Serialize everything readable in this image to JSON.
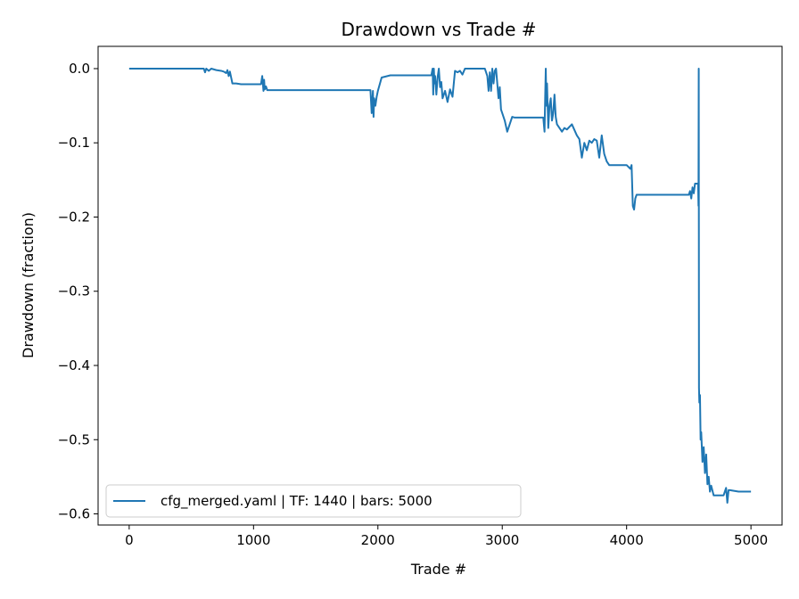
{
  "chart_data": {
    "type": "line",
    "title": "Drawdown vs Trade #",
    "xlabel": "Trade #",
    "ylabel": "Drawdown (fraction)",
    "xlim": [
      -250,
      5250
    ],
    "ylim": [
      -0.615,
      0.03
    ],
    "xticks": [
      0,
      1000,
      2000,
      3000,
      4000,
      5000
    ],
    "xtick_labels": [
      "0",
      "1000",
      "2000",
      "3000",
      "4000",
      "5000"
    ],
    "yticks": [
      0.0,
      -0.1,
      -0.2,
      -0.3,
      -0.4,
      -0.5,
      -0.6
    ],
    "ytick_labels": [
      "0.0",
      "−0.1",
      "−0.2",
      "−0.3",
      "−0.4",
      "−0.5",
      "−0.6"
    ],
    "grid": false,
    "legend_position": "lower-left",
    "series": [
      {
        "name": "cfg_merged.yaml | TF: 1440 | bars: 5000",
        "color": "#1f77b4",
        "x": [
          0,
          600,
          610,
          620,
          640,
          660,
          700,
          740,
          760,
          780,
          790,
          800,
          810,
          820,
          830,
          860,
          900,
          1060,
          1070,
          1080,
          1085,
          1090,
          1100,
          1110,
          1200,
          1500,
          1800,
          1940,
          1950,
          1960,
          1965,
          1970,
          1980,
          1990,
          2000,
          2030,
          2100,
          2200,
          2300,
          2400,
          2430,
          2440,
          2445,
          2450,
          2455,
          2460,
          2470,
          2480,
          2490,
          2500,
          2510,
          2520,
          2540,
          2560,
          2580,
          2600,
          2620,
          2640,
          2660,
          2680,
          2700,
          2720,
          2760,
          2800,
          2860,
          2880,
          2890,
          2900,
          2910,
          2920,
          2930,
          2940,
          2950,
          2960,
          2970,
          2980,
          2990,
          3000,
          3020,
          3040,
          3060,
          3080,
          3100,
          3200,
          3300,
          3330,
          3340,
          3345,
          3350,
          3355,
          3360,
          3370,
          3380,
          3390,
          3400,
          3410,
          3420,
          3430,
          3440,
          3460,
          3480,
          3500,
          3520,
          3560,
          3600,
          3620,
          3640,
          3660,
          3680,
          3700,
          3720,
          3740,
          3760,
          3780,
          3800,
          3820,
          3840,
          3860,
          3900,
          3950,
          4000,
          4030,
          4040,
          4050,
          4060,
          4070,
          4080,
          4100,
          4150,
          4200,
          4300,
          4400,
          4500,
          4510,
          4520,
          4530,
          4540,
          4550,
          4560,
          4570,
          4575,
          4578,
          4580,
          4582,
          4585,
          4590,
          4595,
          4600,
          4610,
          4620,
          4630,
          4640,
          4650,
          4660,
          4670,
          4680,
          4700,
          4750,
          4780,
          4800,
          4810,
          4820,
          4830,
          4900,
          5000
        ],
        "y": [
          0.0,
          0.0,
          -0.005,
          0.0,
          -0.003,
          0.0,
          -0.002,
          -0.003,
          -0.004,
          -0.006,
          -0.002,
          -0.01,
          -0.004,
          -0.012,
          -0.02,
          -0.02,
          -0.021,
          -0.021,
          -0.01,
          -0.03,
          -0.015,
          -0.028,
          -0.024,
          -0.029,
          -0.029,
          -0.029,
          -0.029,
          -0.029,
          -0.06,
          -0.03,
          -0.065,
          -0.04,
          -0.05,
          -0.038,
          -0.03,
          -0.012,
          -0.009,
          -0.009,
          -0.009,
          -0.009,
          -0.009,
          0.0,
          -0.035,
          0.0,
          -0.02,
          -0.01,
          -0.035,
          -0.012,
          0.0,
          -0.025,
          -0.018,
          -0.04,
          -0.03,
          -0.045,
          -0.028,
          -0.038,
          -0.003,
          -0.005,
          -0.003,
          -0.008,
          0.0,
          0.0,
          0.0,
          0.0,
          0.0,
          -0.01,
          -0.03,
          -0.005,
          -0.03,
          0.0,
          -0.02,
          -0.003,
          0.0,
          -0.02,
          -0.04,
          -0.025,
          -0.055,
          -0.06,
          -0.07,
          -0.085,
          -0.075,
          -0.065,
          -0.066,
          -0.066,
          -0.066,
          -0.066,
          -0.085,
          -0.04,
          0.0,
          -0.05,
          -0.02,
          -0.08,
          -0.05,
          -0.04,
          -0.07,
          -0.06,
          -0.035,
          -0.065,
          -0.075,
          -0.08,
          -0.085,
          -0.08,
          -0.082,
          -0.075,
          -0.09,
          -0.095,
          -0.12,
          -0.1,
          -0.11,
          -0.097,
          -0.1,
          -0.095,
          -0.097,
          -0.12,
          -0.09,
          -0.115,
          -0.125,
          -0.13,
          -0.13,
          -0.13,
          -0.13,
          -0.135,
          -0.13,
          -0.185,
          -0.19,
          -0.175,
          -0.17,
          -0.17,
          -0.17,
          -0.17,
          -0.17,
          -0.17,
          -0.17,
          -0.165,
          -0.175,
          -0.16,
          -0.168,
          -0.155,
          -0.155,
          -0.155,
          -0.155,
          -0.185,
          0.0,
          -0.43,
          -0.45,
          -0.44,
          -0.5,
          -0.49,
          -0.53,
          -0.51,
          -0.545,
          -0.52,
          -0.56,
          -0.55,
          -0.57,
          -0.562,
          -0.575,
          -0.575,
          -0.575,
          -0.565,
          -0.585,
          -0.568,
          -0.568,
          -0.57,
          -0.57
        ]
      }
    ]
  }
}
